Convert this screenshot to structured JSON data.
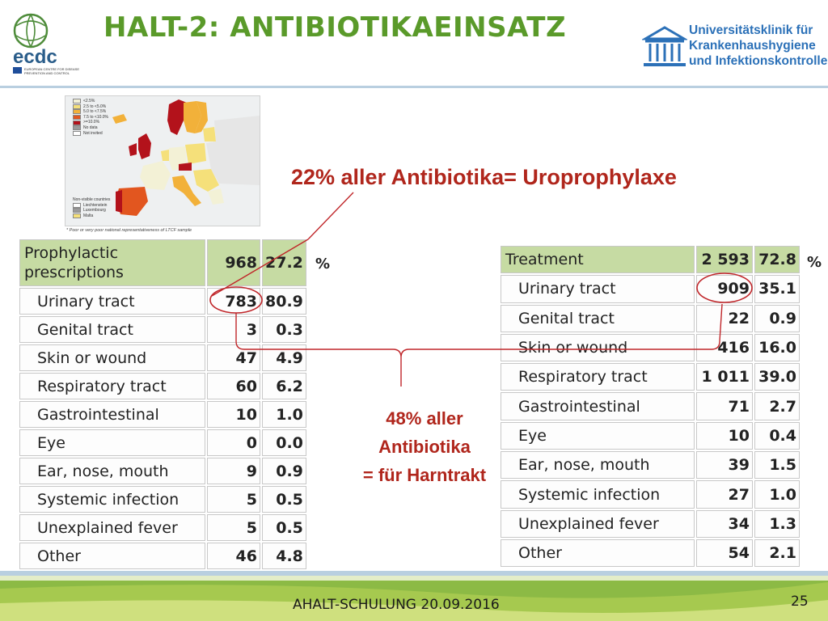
{
  "header": {
    "title": "HALT-2: ANTIBIOTIKAEINSATZ",
    "ecdc_logo": "ecdc",
    "ecdc_sub": [
      "EUROPEAN CENTRE FOR DISEASE",
      "PREVENTION AND CONTROL"
    ],
    "institution_lines": [
      "Universitätsklinik für",
      "Krankenhaushygiene",
      "und Infektionskontrolle"
    ]
  },
  "map": {
    "legend": [
      "<2.5%",
      "2.5 to <5.0%",
      "5.0 to <7.5%",
      "7.5 to <10.0%",
      ">=10.0%",
      "No data",
      "Not invited"
    ],
    "legend_colors": [
      "#f3f1d6",
      "#f5e07a",
      "#f2b13a",
      "#e2561f",
      "#b3121b",
      "#9a9a9a",
      "#ffffff"
    ],
    "legend2_title": "Non-visible countries",
    "legend2": [
      "Liechtenstein",
      "Luxembourg",
      "Malta"
    ],
    "legend2_colors": [
      "#ffffff",
      "#9a9a9a",
      "#f5e07a"
    ],
    "note": "* Poor or very poor national representativeness of LTCF sample"
  },
  "annotations": {
    "top": "22% aller Antibiotika= Uroprophylaxe",
    "middle": [
      "48% aller",
      "Antibiotika",
      "= für Harntrakt"
    ],
    "pct_left": "%",
    "pct_right": "%"
  },
  "table_left": {
    "header": {
      "label": "Prophylactic prescriptions",
      "count": "968",
      "pct": "27.2"
    },
    "rows": [
      {
        "label": "Urinary tract",
        "count": "783",
        "pct": "80.9"
      },
      {
        "label": "Genital tract",
        "count": "3",
        "pct": "0.3"
      },
      {
        "label": "Skin or wound",
        "count": "47",
        "pct": "4.9"
      },
      {
        "label": "Respiratory tract",
        "count": "60",
        "pct": "6.2"
      },
      {
        "label": "Gastrointestinal",
        "count": "10",
        "pct": "1.0"
      },
      {
        "label": "Eye",
        "count": "0",
        "pct": "0.0"
      },
      {
        "label": "Ear, nose, mouth",
        "count": "9",
        "pct": "0.9"
      },
      {
        "label": "Systemic infection",
        "count": "5",
        "pct": "0.5"
      },
      {
        "label": "Unexplained fever",
        "count": "5",
        "pct": "0.5"
      },
      {
        "label": "Other",
        "count": "46",
        "pct": "4.8"
      }
    ]
  },
  "table_right": {
    "header": {
      "label": "Treatment",
      "count": "2 593",
      "pct": "72.8"
    },
    "rows": [
      {
        "label": "Urinary tract",
        "count": "909",
        "pct": "35.1"
      },
      {
        "label": "Genital tract",
        "count": "22",
        "pct": "0.9"
      },
      {
        "label": "Skin or wound",
        "count": "416",
        "pct": "16.0"
      },
      {
        "label": "Respiratory tract",
        "count": "1 011",
        "pct": "39.0"
      },
      {
        "label": "Gastrointestinal",
        "count": "71",
        "pct": "2.7"
      },
      {
        "label": "Eye",
        "count": "10",
        "pct": "0.4"
      },
      {
        "label": "Ear, nose, mouth",
        "count": "39",
        "pct": "1.5"
      },
      {
        "label": "Systemic infection",
        "count": "27",
        "pct": "1.0"
      },
      {
        "label": "Unexplained fever",
        "count": "34",
        "pct": "1.3"
      },
      {
        "label": "Other",
        "count": "54",
        "pct": "2.1"
      }
    ]
  },
  "footer": {
    "text": "AHALT-SCHULUNG 20.09.2016",
    "page": "25"
  }
}
